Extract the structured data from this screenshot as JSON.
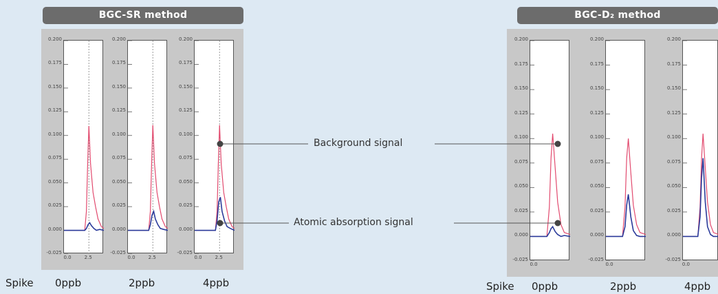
{
  "chart_data": [
    {
      "type": "line",
      "title": "BGC-SR method",
      "ylim": [
        -0.025,
        0.2
      ],
      "xlim": [
        -0.5,
        4.3
      ],
      "yticks": [
        "0.200",
        "0.175",
        "0.150",
        "0.125",
        "0.100",
        "0.075",
        "0.050",
        "0.025",
        "0.000",
        "-0.025"
      ],
      "xticks": [
        "0.0",
        "2.5"
      ],
      "footer_label": "Spike",
      "panels": [
        {
          "label": "0ppb",
          "series": [
            {
              "color": "#e24a6e",
              "x": [
                -0.5,
                2.0,
                2.2,
                2.35,
                2.5,
                2.7,
                3.0,
                3.3,
                3.6,
                4.0,
                4.3
              ],
              "y": [
                0.0,
                0.0,
                0.02,
                0.07,
                0.11,
                0.07,
                0.04,
                0.025,
                0.012,
                0.004,
                0.002
              ]
            },
            {
              "color": "#2a3a9a",
              "x": [
                -0.5,
                2.0,
                2.2,
                2.4,
                2.6,
                2.8,
                3.1,
                3.4,
                3.8,
                4.3
              ],
              "y": [
                0.0,
                0.0,
                0.002,
                0.006,
                0.008,
                0.005,
                0.002,
                0.0,
                0.001,
                0.0
              ]
            }
          ]
        },
        {
          "label": "2ppb",
          "series": [
            {
              "color": "#e24a6e",
              "x": [
                -0.5,
                2.0,
                2.2,
                2.35,
                2.5,
                2.7,
                3.0,
                3.3,
                3.6,
                4.0,
                4.3
              ],
              "y": [
                0.0,
                0.0,
                0.02,
                0.07,
                0.111,
                0.07,
                0.04,
                0.025,
                0.012,
                0.004,
                0.002
              ]
            },
            {
              "color": "#2a3a9a",
              "x": [
                -0.5,
                2.0,
                2.2,
                2.4,
                2.6,
                2.8,
                3.1,
                3.4,
                3.8,
                4.3
              ],
              "y": [
                0.0,
                0.0,
                0.006,
                0.016,
                0.02,
                0.012,
                0.006,
                0.002,
                0.001,
                0.0
              ]
            }
          ]
        },
        {
          "label": "4ppb",
          "series": [
            {
              "color": "#e24a6e",
              "x": [
                -0.5,
                2.0,
                2.2,
                2.35,
                2.5,
                2.7,
                3.0,
                3.3,
                3.6,
                4.0,
                4.3
              ],
              "y": [
                0.0,
                0.0,
                0.02,
                0.07,
                0.111,
                0.07,
                0.04,
                0.025,
                0.012,
                0.004,
                0.002
              ]
            },
            {
              "color": "#2a3a9a",
              "x": [
                -0.5,
                2.0,
                2.2,
                2.4,
                2.6,
                2.8,
                3.1,
                3.4,
                3.8,
                4.3
              ],
              "y": [
                0.0,
                0.0,
                0.01,
                0.03,
                0.035,
                0.02,
                0.01,
                0.004,
                0.002,
                0.0
              ]
            }
          ]
        }
      ]
    },
    {
      "type": "line",
      "title": "BGC-D₂ method",
      "ylim": [
        -0.025,
        0.2
      ],
      "xlim": [
        -0.5,
        4.3
      ],
      "yticks": [
        "0.200",
        "0.175",
        "0.150",
        "0.125",
        "0.100",
        "0.075",
        "0.050",
        "0.025",
        "0.000",
        "-0.025"
      ],
      "xticks": [
        "0.0"
      ],
      "footer_label": "Spike",
      "panels": [
        {
          "label": "0ppb",
          "series": [
            {
              "color": "#e24a6e",
              "x": [
                -0.5,
                1.5,
                1.8,
                2.0,
                2.2,
                2.5,
                2.8,
                3.2,
                3.6,
                4.3
              ],
              "y": [
                0.0,
                0.0,
                0.03,
                0.08,
                0.105,
                0.07,
                0.035,
                0.012,
                0.004,
                0.002
              ]
            },
            {
              "color": "#2a3a9a",
              "x": [
                -0.5,
                1.5,
                1.8,
                2.0,
                2.2,
                2.5,
                2.8,
                3.2,
                3.6,
                4.3
              ],
              "y": [
                0.0,
                0.0,
                0.004,
                0.008,
                0.01,
                0.005,
                0.002,
                0.0,
                0.001,
                0.0
              ]
            }
          ]
        },
        {
          "label": "2ppb",
          "series": [
            {
              "color": "#e24a6e",
              "x": [
                -0.5,
                1.5,
                1.8,
                2.0,
                2.2,
                2.5,
                2.8,
                3.2,
                3.6,
                4.3
              ],
              "y": [
                0.0,
                0.0,
                0.03,
                0.08,
                0.1,
                0.065,
                0.032,
                0.012,
                0.004,
                0.002
              ]
            },
            {
              "color": "#2a3a9a",
              "x": [
                -0.5,
                1.5,
                1.8,
                2.0,
                2.2,
                2.5,
                2.8,
                3.2,
                3.6,
                4.3
              ],
              "y": [
                0.0,
                0.0,
                0.01,
                0.032,
                0.043,
                0.02,
                0.006,
                0.001,
                0.0,
                0.0
              ]
            }
          ]
        },
        {
          "label": "4ppb",
          "series": [
            {
              "color": "#e24a6e",
              "x": [
                -0.5,
                1.5,
                1.8,
                2.0,
                2.2,
                2.5,
                2.8,
                3.2,
                3.6,
                4.3
              ],
              "y": [
                0.0,
                0.0,
                0.03,
                0.08,
                0.105,
                0.07,
                0.035,
                0.012,
                0.004,
                0.002
              ]
            },
            {
              "color": "#2a3a9a",
              "x": [
                -0.5,
                1.5,
                1.8,
                2.0,
                2.2,
                2.5,
                2.8,
                3.2,
                3.6,
                4.3
              ],
              "y": [
                0.0,
                0.0,
                0.02,
                0.06,
                0.08,
                0.035,
                0.01,
                0.002,
                0.0,
                0.0
              ]
            }
          ]
        }
      ]
    }
  ],
  "annotations": {
    "background_signal": "Background signal",
    "atomic_absorption_signal": "Atomic absorption signal"
  },
  "colors": {
    "panel_bg": "#c8c8c8",
    "header_bg": "#6c6c6c",
    "page_bg": "#dde9f3",
    "marker": "#444444",
    "line": "#555555"
  }
}
